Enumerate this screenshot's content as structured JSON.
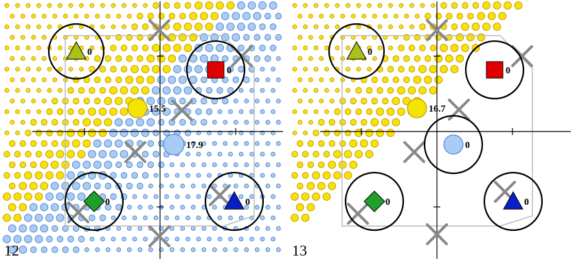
{
  "colors": {
    "yellow": "#f5e400",
    "yellow_dot_edge": "#c58a00",
    "blue": "#a9ccf6",
    "blue_edge": "#3e78c8",
    "red": "#e00000",
    "green": "#1fa02a",
    "dark_blue": "#0a1ec8",
    "olive": "#a8c21a",
    "cross": "#888888",
    "axis": "#000000",
    "frame": "#bbbbbb"
  },
  "panels": [
    {
      "number": "12",
      "agents": [
        {
          "name": "olive-triangle",
          "shape": "triangle",
          "color": "olive",
          "value": "0",
          "circled": true
        },
        {
          "name": "red-square",
          "shape": "square",
          "color": "red",
          "value": "0",
          "circled": true
        },
        {
          "name": "yellow-circle",
          "shape": "circle",
          "color": "yellow",
          "value": "15.5",
          "circled": false
        },
        {
          "name": "blue-circle",
          "shape": "circle",
          "color": "blue",
          "value": "17.9",
          "circled": false
        },
        {
          "name": "green-diamond",
          "shape": "diamond",
          "color": "green",
          "value": "0",
          "circled": true
        },
        {
          "name": "blue-triangle",
          "shape": "triangle",
          "color": "dark_blue",
          "value": "0",
          "circled": true
        }
      ]
    },
    {
      "number": "13",
      "agents": [
        {
          "name": "olive-triangle",
          "shape": "triangle",
          "color": "olive",
          "value": "0",
          "circled": true
        },
        {
          "name": "red-square",
          "shape": "square",
          "color": "red",
          "value": "0",
          "circled": true
        },
        {
          "name": "yellow-circle",
          "shape": "circle",
          "color": "yellow",
          "value": "16.7",
          "circled": false
        },
        {
          "name": "blue-circle",
          "shape": "circle",
          "color": "blue",
          "value": "0",
          "circled": true
        },
        {
          "name": "green-diamond",
          "shape": "diamond",
          "color": "green",
          "value": "0",
          "circled": true
        },
        {
          "name": "blue-triangle",
          "shape": "triangle",
          "color": "dark_blue",
          "value": "0",
          "circled": true
        }
      ]
    }
  ]
}
